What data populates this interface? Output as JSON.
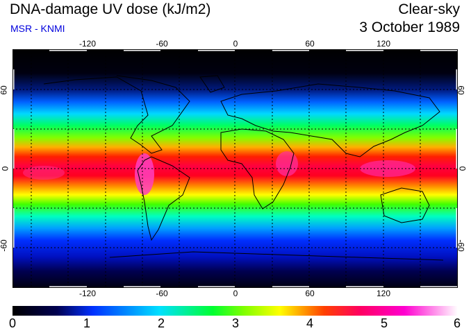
{
  "header": {
    "title": "DNA-damage UV dose (kJ/m2)",
    "subtitle": "MSR - KNMI",
    "product": "Clear-sky",
    "date": "3 October 1989"
  },
  "map": {
    "lon_ticks": [
      "-120",
      "-60",
      "0",
      "60",
      "120"
    ],
    "lat_ticks": [
      "60",
      "0",
      "-60"
    ],
    "grid_lons": [
      -150,
      -120,
      -90,
      -60,
      -30,
      0,
      30,
      60,
      90,
      120,
      150
    ],
    "grid_lats": [
      -60,
      -30,
      0,
      30,
      60
    ],
    "lon_range": [
      -180,
      180
    ],
    "lat_range": [
      -90,
      90
    ]
  },
  "colorbar": {
    "labels": [
      "0",
      "1",
      "2",
      "3",
      "4",
      "5",
      "6"
    ],
    "min": 0,
    "max": 6,
    "colors": [
      "#000000",
      "#000080",
      "#0050ff",
      "#00e0ff",
      "#00ff00",
      "#ffff00",
      "#ff0000",
      "#ff00ff",
      "#ffffff"
    ]
  }
}
